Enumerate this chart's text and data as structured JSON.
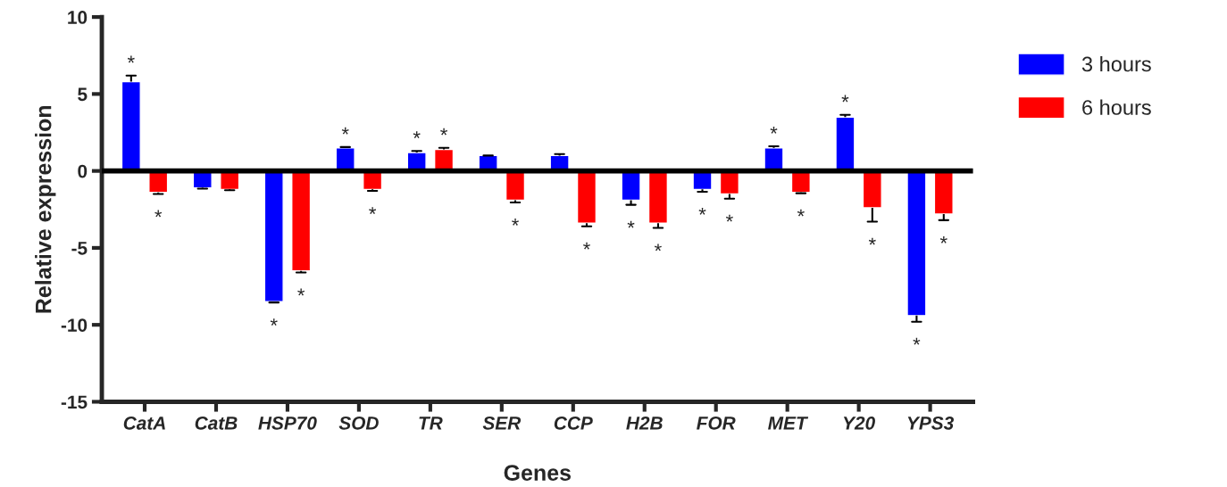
{
  "chart_data": {
    "type": "bar",
    "xlabel": "Genes",
    "ylabel": "Relative expression",
    "categories": [
      "CatA",
      "CatB",
      "HSP70",
      "SOD",
      "TR",
      "SER",
      "CCP",
      "H2B",
      "FOR",
      "MET",
      "Y20",
      "YPS3"
    ],
    "series": [
      {
        "name": "3 hours",
        "color": "#0000ff",
        "values": [
          5.8,
          -1.1,
          -8.5,
          1.5,
          1.2,
          1.0,
          1.0,
          -1.9,
          -1.2,
          1.5,
          3.5,
          -9.4
        ],
        "errors": [
          [
            5.8,
            6.2
          ],
          [
            -1.15,
            -1.1
          ],
          [
            -8.55,
            -8.5
          ],
          [
            1.5,
            1.55
          ],
          [
            1.2,
            1.3
          ],
          [
            1.0,
            1.0
          ],
          [
            1.0,
            1.1
          ],
          [
            -2.2,
            -1.9
          ],
          [
            -1.35,
            -1.2
          ],
          [
            1.5,
            1.6
          ],
          [
            3.5,
            3.65
          ],
          [
            -9.8,
            -9.4
          ]
        ],
        "value_labels": [
          "*",
          null,
          "*",
          "*",
          "*",
          null,
          null,
          "*",
          "*",
          "*",
          "*",
          "*"
        ]
      },
      {
        "name": "6 hours",
        "color": "#ff0000",
        "values": [
          -1.4,
          -1.2,
          -6.5,
          -1.2,
          1.4,
          -1.9,
          -3.4,
          -3.4,
          -1.5,
          -1.4,
          -2.4,
          -2.8
        ],
        "errors": [
          [
            -1.5,
            -1.4
          ],
          [
            -1.25,
            -1.2
          ],
          [
            -6.6,
            -6.5
          ],
          [
            -1.3,
            -1.2
          ],
          [
            1.4,
            1.5
          ],
          [
            -2.05,
            -1.9
          ],
          [
            -3.6,
            -3.4
          ],
          [
            -3.7,
            -3.4
          ],
          [
            -1.8,
            -1.5
          ],
          [
            -1.45,
            -1.4
          ],
          [
            -3.3,
            -2.4
          ],
          [
            -3.2,
            -2.8
          ]
        ],
        "value_labels": [
          "*",
          null,
          "*",
          "*",
          "*",
          "*",
          "*",
          "*",
          "*",
          "*",
          "*",
          "*"
        ]
      }
    ],
    "ylim": [
      -15,
      10
    ],
    "yticks": [
      -15,
      -10,
      -5,
      0,
      5,
      10
    ],
    "ref_lines": [
      {
        "axis": "y",
        "value": 0,
        "color": "#000000"
      }
    ],
    "legend": "right",
    "grid": false
  }
}
